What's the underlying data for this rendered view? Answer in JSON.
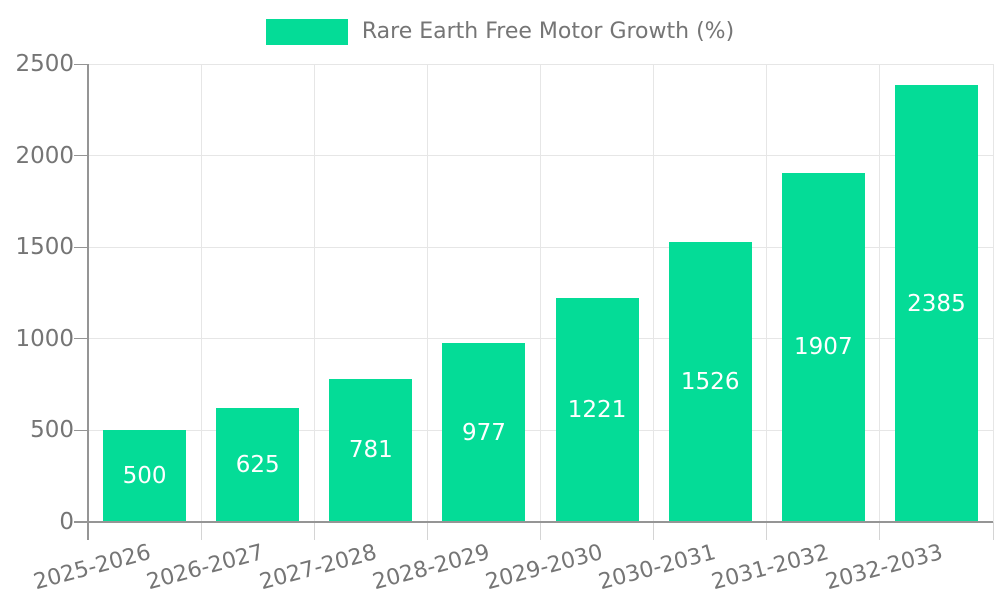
{
  "legend": {
    "label": "Rare Earth Free Motor Growth (%)"
  },
  "chart_data": {
    "type": "bar",
    "title": "Rare Earth Free Motor Growth (%)",
    "categories": [
      "2025-2026",
      "2026-2027",
      "2027-2028",
      "2028-2029",
      "2029-2030",
      "2030-2031",
      "2031-2032",
      "2032-2033"
    ],
    "values": [
      500,
      625,
      781,
      977,
      1221,
      1526,
      1907,
      2385
    ],
    "value_labels": [
      "500",
      "625",
      "781",
      "977",
      "1221",
      "1526",
      "1907",
      "2385"
    ],
    "xlabel": "",
    "ylabel": "",
    "ylim": [
      0,
      2500
    ],
    "yticks": [
      0,
      500,
      1000,
      1500,
      2000,
      2500
    ],
    "grid": true,
    "legend_position": "top-center",
    "x_label_rotation_deg": -15,
    "colors": {
      "bar": "#04DC97",
      "value_label": "#ffffff",
      "grid": "#e6e6e6",
      "axis": "#959595",
      "tick": "#d4d4d4",
      "tick_label": "#757575",
      "legend_text": "#757575"
    }
  }
}
